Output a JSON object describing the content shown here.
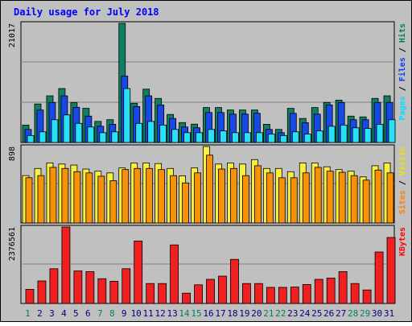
{
  "chart_data": {
    "type": "bar",
    "title": "Daily usage for July 2018",
    "categories": [
      "1",
      "2",
      "3",
      "4",
      "5",
      "6",
      "7",
      "8",
      "9",
      "10",
      "11",
      "12",
      "13",
      "14",
      "15",
      "16",
      "17",
      "18",
      "19",
      "20",
      "21",
      "22",
      "23",
      "24",
      "25",
      "26",
      "27",
      "28",
      "29",
      "30",
      "31"
    ],
    "weekend_days": [
      "1",
      "7",
      "8",
      "14",
      "15",
      "21",
      "22",
      "28",
      "29"
    ],
    "panels": [
      {
        "id": "hits",
        "max_label": "21017",
        "ylim": [
          0,
          21017
        ],
        "legend": [
          {
            "text": "Pages",
            "color": "#00e0ff"
          },
          {
            "text": " / ",
            "color": "#000000"
          },
          {
            "text": "Files",
            "color": "#0040ff"
          },
          {
            "text": " / ",
            "color": "#000000"
          },
          {
            "text": "Hits",
            "color": "#008060"
          }
        ],
        "series": [
          {
            "name": "Hits",
            "color": "#108060",
            "values": [
              3070,
              6790,
              8230,
              9510,
              7060,
              6020,
              3710,
              4020,
              21017,
              6920,
              9410,
              7770,
              4940,
              3510,
              3230,
              6160,
              6160,
              5730,
              5730,
              5730,
              3210,
              2300,
              6020,
              4240,
              6160,
              7060,
              7460,
              4650,
              4510,
              7770,
              8230
            ]
          },
          {
            "name": "Files",
            "color": "#1848e8",
            "values": [
              2300,
              5730,
              7060,
              8230,
              6200,
              4650,
              2860,
              3210,
              11720,
              6330,
              8230,
              6620,
              4240,
              2730,
              2590,
              5280,
              5280,
              5000,
              5000,
              5140,
              2300,
              1730,
              5140,
              3500,
              5000,
              6620,
              7060,
              4010,
              4010,
              7060,
              7060
            ]
          },
          {
            "name": "Pages",
            "color": "#28e0f8",
            "values": [
              1230,
              1880,
              4010,
              4860,
              3370,
              2730,
              1730,
              1880,
              9510,
              3370,
              3710,
              3070,
              2300,
              1730,
              1730,
              2300,
              2040,
              1730,
              1730,
              1730,
              1480,
              1230,
              1880,
              1480,
              2040,
              2860,
              3070,
              2590,
              2470,
              3210,
              4010
            ]
          }
        ]
      },
      {
        "id": "visits",
        "max_label": "898",
        "ylim": [
          0,
          898
        ],
        "legend": [
          {
            "text": "Sites",
            "color": "#ff8000"
          },
          {
            "text": " / ",
            "color": "#000000"
          },
          {
            "text": "Visits",
            "color": "#e8e800"
          }
        ],
        "series": [
          {
            "name": "Visits",
            "color": "#f8f040",
            "values": [
              556,
              640,
              705,
              692,
              680,
              633,
              608,
              588,
              646,
              705,
              705,
              698,
              640,
              554,
              646,
              898,
              692,
              705,
              692,
              744,
              640,
              640,
              602,
              705,
              705,
              660,
              627,
              608,
              541,
              672,
              705
            ]
          },
          {
            "name": "Sites",
            "color": "#f89008",
            "values": [
              531,
              556,
              653,
              640,
              602,
              588,
              549,
              497,
              627,
              640,
              640,
              627,
              556,
              470,
              588,
              796,
              633,
              640,
              556,
              672,
              588,
              531,
              531,
              588,
              653,
              608,
              595,
              556,
              503,
              621,
              588
            ]
          }
        ]
      },
      {
        "id": "kbytes",
        "max_label": "2376561",
        "ylim": [
          0,
          2376561
        ],
        "legend": [
          {
            "text": "KBytes",
            "color": "#ff0000"
          }
        ],
        "series": [
          {
            "name": "KBytes",
            "color": "#f02020",
            "values": [
              440000,
              700000,
              1080000,
              2376561,
              1010000,
              990000,
              770000,
              690000,
              1080000,
              1940000,
              620000,
              620000,
              1820000,
              320000,
              580000,
              750000,
              850000,
              1370000,
              620000,
              620000,
              500000,
              500000,
              510000,
              590000,
              750000,
              790000,
              990000,
              620000,
              420000,
              1600000,
              2050000
            ]
          }
        ]
      }
    ]
  }
}
